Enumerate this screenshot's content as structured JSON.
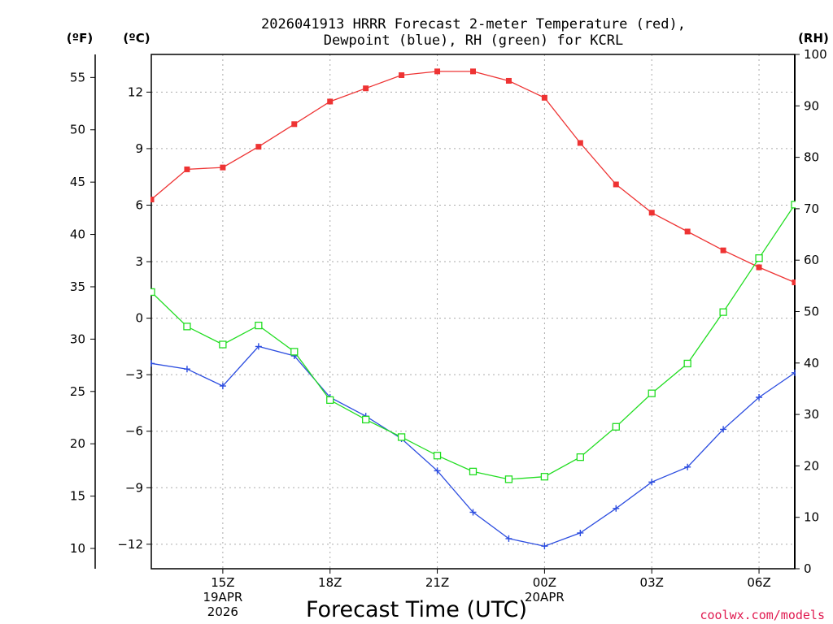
{
  "chart_data": {
    "type": "line",
    "title_line1": "2026041913 HRRR Forecast 2-meter Temperature (red),",
    "title_line2": "Dewpoint (blue), RH (green) for KCRL",
    "left_outer_unit": "(ºF)",
    "left_inner_unit": "(ºC)",
    "right_unit": "(RH)",
    "xlabel": "Forecast Time (UTC)",
    "credit": "coolwx.com/models",
    "hours": [
      13,
      14,
      15,
      16,
      17,
      18,
      19,
      20,
      21,
      22,
      23,
      24,
      25,
      26,
      27,
      28,
      29,
      30,
      31
    ],
    "xlim": [
      13,
      31
    ],
    "x_ticks": [
      {
        "hour": 15,
        "lines": [
          "15Z",
          "19APR",
          "2026"
        ]
      },
      {
        "hour": 18,
        "lines": [
          "18Z"
        ]
      },
      {
        "hour": 21,
        "lines": [
          "21Z"
        ]
      },
      {
        "hour": 24,
        "lines": [
          "00Z",
          "20APR"
        ]
      },
      {
        "hour": 27,
        "lines": [
          "03Z"
        ]
      },
      {
        "hour": 30,
        "lines": [
          "06Z"
        ]
      }
    ],
    "celsius_lim": [
      -13.3,
      14.0
    ],
    "celsius_ticks": [
      "12",
      "9",
      "6",
      "3",
      "0",
      "−3",
      "−6",
      "−9",
      "−12"
    ],
    "celsius_tick_values": [
      12,
      9,
      6,
      3,
      0,
      -3,
      -6,
      -9,
      -12
    ],
    "fahrenheit_ticks": [
      "55",
      "50",
      "45",
      "40",
      "35",
      "30",
      "25",
      "20",
      "15",
      "10"
    ],
    "fahrenheit_tick_values": [
      55,
      50,
      45,
      40,
      35,
      30,
      25,
      20,
      15,
      10
    ],
    "rh_lim": [
      0,
      100
    ],
    "rh_ticks": [
      "100",
      "90",
      "80",
      "70",
      "60",
      "50",
      "40",
      "30",
      "20",
      "10",
      "0"
    ],
    "rh_tick_values": [
      100,
      90,
      80,
      70,
      60,
      50,
      40,
      30,
      20,
      10,
      0
    ],
    "series": [
      {
        "name": "Temperature",
        "unit": "C",
        "color": "#ee3333",
        "marker": "filled-square",
        "values": [
          6.3,
          7.9,
          8.0,
          9.1,
          10.3,
          11.5,
          12.2,
          12.9,
          13.1,
          13.1,
          12.6,
          11.7,
          9.3,
          7.1,
          5.6,
          4.6,
          3.6,
          2.7,
          1.9
        ]
      },
      {
        "name": "Dewpoint",
        "unit": "C",
        "color": "#2c4de0",
        "marker": "plus",
        "values": [
          -2.4,
          -2.7,
          -3.6,
          -1.5,
          -2.0,
          -4.2,
          -5.2,
          -6.4,
          -8.1,
          -10.3,
          -11.7,
          -12.1,
          -11.4,
          -10.1,
          -8.7,
          -7.9,
          -5.9,
          -4.2,
          -2.9
        ]
      },
      {
        "name": "RH",
        "unit": "%",
        "color": "#22dd22",
        "marker": "open-square",
        "values": [
          53.8,
          47.1,
          43.6,
          47.3,
          42.2,
          32.8,
          29.0,
          25.6,
          22.0,
          18.9,
          17.4,
          17.9,
          21.7,
          27.6,
          34.1,
          39.9,
          49.9,
          60.4,
          70.8
        ]
      }
    ]
  }
}
